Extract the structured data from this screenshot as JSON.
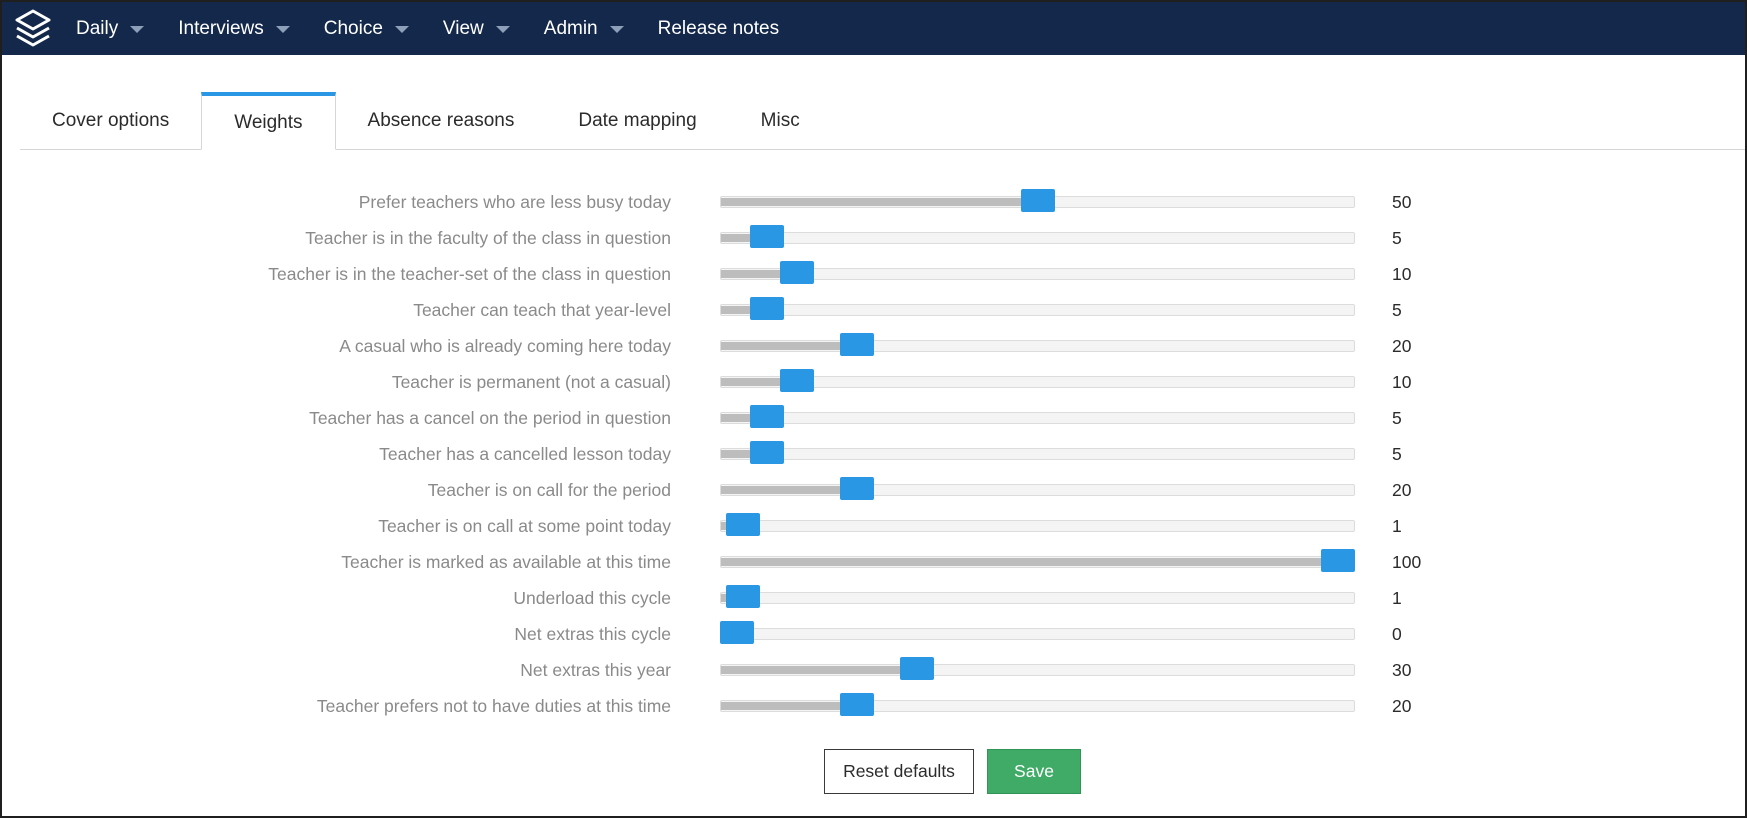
{
  "navbar": {
    "logo_icon": "layers-logo-icon",
    "items": [
      {
        "label": "Daily",
        "has_dropdown": true
      },
      {
        "label": "Interviews",
        "has_dropdown": true
      },
      {
        "label": "Choice",
        "has_dropdown": true
      },
      {
        "label": "View",
        "has_dropdown": true
      },
      {
        "label": "Admin",
        "has_dropdown": true
      },
      {
        "label": "Release notes",
        "has_dropdown": false
      }
    ]
  },
  "tabs": [
    {
      "label": "Cover options",
      "active": false
    },
    {
      "label": "Weights",
      "active": true
    },
    {
      "label": "Absence reasons",
      "active": false
    },
    {
      "label": "Date mapping",
      "active": false
    },
    {
      "label": "Misc",
      "active": false
    }
  ],
  "slider_max": 100,
  "weights": [
    {
      "label": "Prefer teachers who are less busy today",
      "value": "50"
    },
    {
      "label": "Teacher is in the faculty of the class in question",
      "value": "5"
    },
    {
      "label": "Teacher is in the teacher-set of the class in question",
      "value": "10"
    },
    {
      "label": "Teacher can teach that year-level",
      "value": "5"
    },
    {
      "label": "A casual who is already coming here today",
      "value": "20"
    },
    {
      "label": "Teacher is permanent (not a casual)",
      "value": "10"
    },
    {
      "label": "Teacher has a cancel on the period in question",
      "value": "5"
    },
    {
      "label": "Teacher has a cancelled lesson today",
      "value": "5"
    },
    {
      "label": "Teacher is on call for the period",
      "value": "20"
    },
    {
      "label": "Teacher is on call at some point today",
      "value": "1"
    },
    {
      "label": "Teacher is marked as available at this time",
      "value": "100"
    },
    {
      "label": "Underload this cycle",
      "value": "1"
    },
    {
      "label": "Net extras this cycle",
      "value": "0"
    },
    {
      "label": "Net extras this year",
      "value": "30"
    },
    {
      "label": "Teacher prefers not to have duties at this time",
      "value": "20"
    }
  ],
  "buttons": {
    "reset_label": "Reset defaults",
    "save_label": "Save"
  },
  "colors": {
    "navbar_bg": "#14284b",
    "accent": "#2a97e5",
    "save": "#3fab67"
  }
}
